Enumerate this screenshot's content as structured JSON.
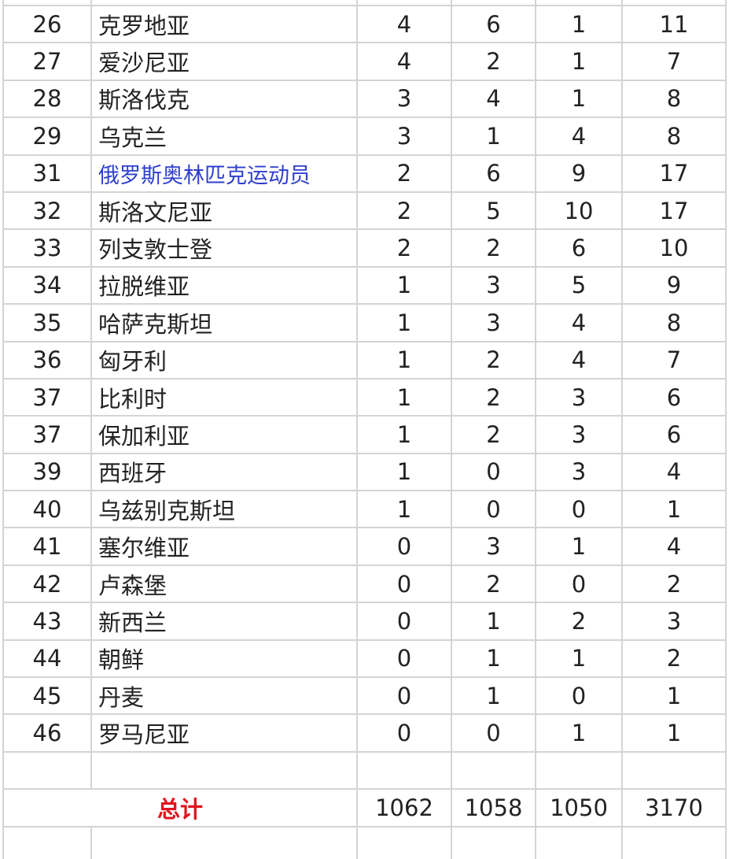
{
  "table": {
    "rows": [
      {
        "rank": "26",
        "name": "克罗地亚",
        "gold": "4",
        "silver": "6",
        "bronze": "1",
        "total": "11"
      },
      {
        "rank": "27",
        "name": "爱沙尼亚",
        "gold": "4",
        "silver": "2",
        "bronze": "1",
        "total": "7"
      },
      {
        "rank": "28",
        "name": "斯洛伐克",
        "gold": "3",
        "silver": "4",
        "bronze": "1",
        "total": "8"
      },
      {
        "rank": "29",
        "name": "乌克兰",
        "gold": "3",
        "silver": "1",
        "bronze": "4",
        "total": "8"
      },
      {
        "rank": "31",
        "name": "俄罗斯奥林匹克运动员",
        "gold": "2",
        "silver": "6",
        "bronze": "9",
        "total": "17",
        "link": true
      },
      {
        "rank": "32",
        "name": "斯洛文尼亚",
        "gold": "2",
        "silver": "5",
        "bronze": "10",
        "total": "17"
      },
      {
        "rank": "33",
        "name": "列支敦士登",
        "gold": "2",
        "silver": "2",
        "bronze": "6",
        "total": "10"
      },
      {
        "rank": "34",
        "name": "拉脱维亚",
        "gold": "1",
        "silver": "3",
        "bronze": "5",
        "total": "9"
      },
      {
        "rank": "35",
        "name": "哈萨克斯坦",
        "gold": "1",
        "silver": "3",
        "bronze": "4",
        "total": "8"
      },
      {
        "rank": "36",
        "name": "匈牙利",
        "gold": "1",
        "silver": "2",
        "bronze": "4",
        "total": "7"
      },
      {
        "rank": "37",
        "name": "比利时",
        "gold": "1",
        "silver": "2",
        "bronze": "3",
        "total": "6"
      },
      {
        "rank": "37",
        "name": "保加利亚",
        "gold": "1",
        "silver": "2",
        "bronze": "3",
        "total": "6"
      },
      {
        "rank": "39",
        "name": "西班牙",
        "gold": "1",
        "silver": "0",
        "bronze": "3",
        "total": "4"
      },
      {
        "rank": "40",
        "name": "乌兹别克斯坦",
        "gold": "1",
        "silver": "0",
        "bronze": "0",
        "total": "1"
      },
      {
        "rank": "41",
        "name": "塞尔维亚",
        "gold": "0",
        "silver": "3",
        "bronze": "1",
        "total": "4"
      },
      {
        "rank": "42",
        "name": "卢森堡",
        "gold": "0",
        "silver": "2",
        "bronze": "0",
        "total": "2"
      },
      {
        "rank": "43",
        "name": "新西兰",
        "gold": "0",
        "silver": "1",
        "bronze": "2",
        "total": "3"
      },
      {
        "rank": "44",
        "name": "朝鲜",
        "gold": "0",
        "silver": "1",
        "bronze": "1",
        "total": "2"
      },
      {
        "rank": "45",
        "name": "丹麦",
        "gold": "0",
        "silver": "1",
        "bronze": "0",
        "total": "1"
      },
      {
        "rank": "46",
        "name": "罗马尼亚",
        "gold": "0",
        "silver": "0",
        "bronze": "1",
        "total": "1"
      }
    ],
    "totals": {
      "label": "总计",
      "gold": "1062",
      "silver": "1058",
      "bronze": "1050",
      "total": "3170"
    },
    "colors": {
      "link": "#2e3fcf",
      "total_label": "#e0141e",
      "grid": "#d4d4d4"
    }
  }
}
